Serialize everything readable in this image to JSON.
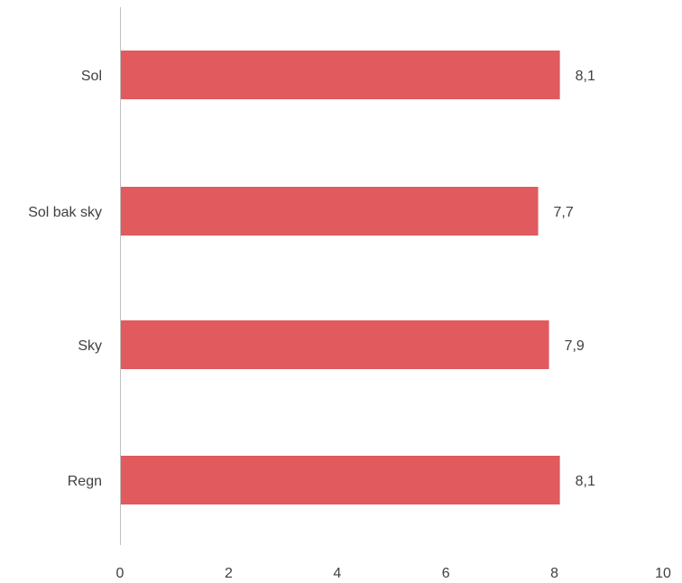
{
  "chart_data": {
    "type": "bar",
    "orientation": "horizontal",
    "categories": [
      "Sol",
      "Sol bak sky",
      "Sky",
      "Regn"
    ],
    "values": [
      8.1,
      7.7,
      7.9,
      8.1
    ],
    "value_labels": [
      "8,1",
      "7,7",
      "7,9",
      "8,1"
    ],
    "xlim": [
      0,
      10
    ],
    "xticks": [
      "0",
      "2",
      "4",
      "6",
      "8",
      "10"
    ],
    "grid": false,
    "legend": "none",
    "bar_color": "#E05A5E",
    "axis_color": "#BFBFBF",
    "text_color": "#404040"
  }
}
